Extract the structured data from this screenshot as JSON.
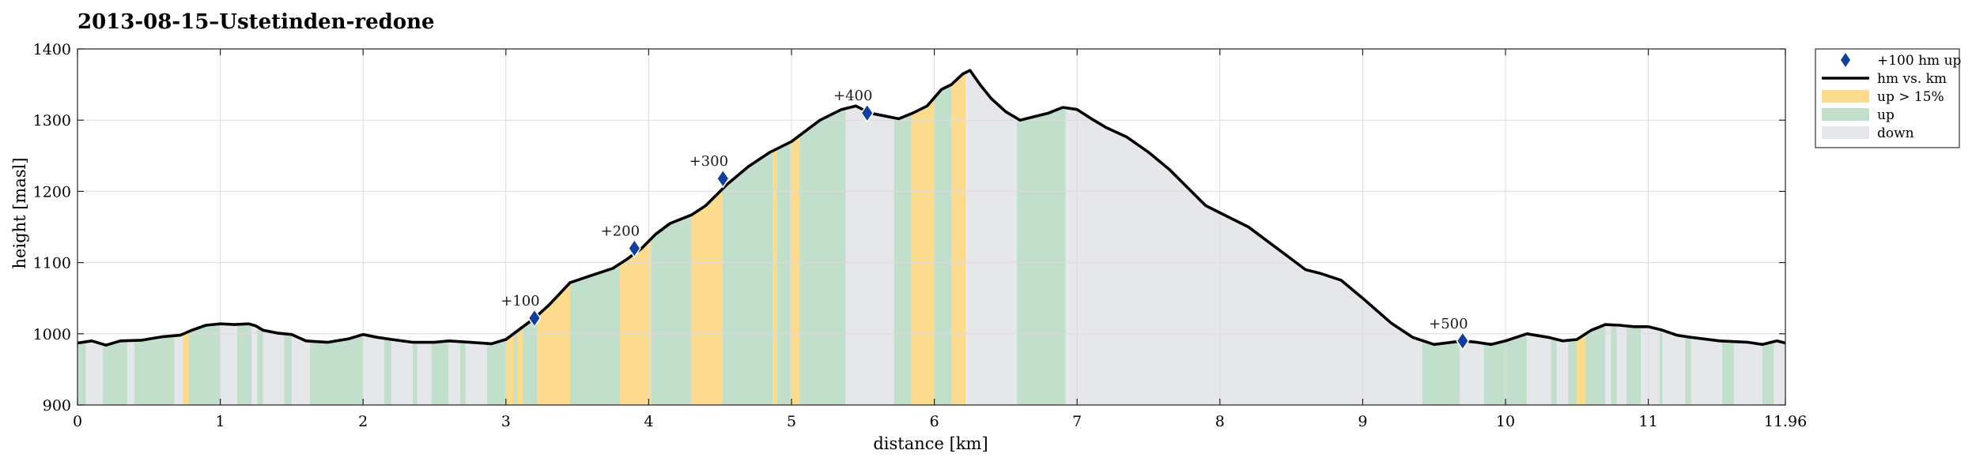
{
  "chart_data": {
    "type": "area",
    "title": "2013-08-15–Ustetinden-redone",
    "xlabel": "distance [km]",
    "ylabel": "height [masl]",
    "xlim": [
      0,
      11.96
    ],
    "ylim": [
      900,
      1400
    ],
    "xticks": [
      0,
      1,
      2,
      3,
      4,
      5,
      6,
      7,
      8,
      9,
      10,
      11,
      11.96
    ],
    "xtick_labels": [
      "0",
      "1",
      "2",
      "3",
      "4",
      "5",
      "6",
      "7",
      "8",
      "9",
      "10",
      "11",
      "11.96"
    ],
    "yticks": [
      900,
      1000,
      1100,
      1200,
      1300,
      1400
    ],
    "ytick_labels": [
      "900",
      "1000",
      "1100",
      "1200",
      "1300",
      "1400"
    ],
    "grid": true,
    "legend_position": "outside-top-right",
    "colors": {
      "line": "#000000",
      "steep": "#fddb8e",
      "up": "#c2dfcc",
      "down": "#e6e7eb",
      "marker": "#123f9a",
      "grid": "#dcdcdc"
    },
    "legend": [
      {
        "key": "marker",
        "label": "+100 hm up"
      },
      {
        "key": "line",
        "label": "hm vs. km"
      },
      {
        "key": "steep",
        "label": "up > 15%"
      },
      {
        "key": "up",
        "label": "up"
      },
      {
        "key": "down",
        "label": "down"
      }
    ],
    "series": [
      {
        "name": "hm vs. km",
        "x": [
          0,
          0.1,
          0.2,
          0.3,
          0.45,
          0.6,
          0.72,
          0.8,
          0.9,
          1.0,
          1.1,
          1.2,
          1.25,
          1.3,
          1.4,
          1.5,
          1.6,
          1.75,
          1.9,
          2.0,
          2.1,
          2.2,
          2.35,
          2.5,
          2.6,
          2.75,
          2.9,
          3.0,
          3.1,
          3.2,
          3.3,
          3.45,
          3.6,
          3.75,
          3.85,
          3.95,
          4.05,
          4.15,
          4.3,
          4.4,
          4.55,
          4.7,
          4.85,
          5.0,
          5.1,
          5.2,
          5.35,
          5.45,
          5.55,
          5.65,
          5.75,
          5.85,
          5.95,
          6.05,
          6.12,
          6.2,
          6.25,
          6.32,
          6.4,
          6.5,
          6.6,
          6.7,
          6.8,
          6.9,
          7.0,
          7.1,
          7.2,
          7.35,
          7.5,
          7.65,
          7.8,
          7.9,
          8.0,
          8.2,
          8.4,
          8.6,
          8.7,
          8.85,
          9.0,
          9.2,
          9.35,
          9.5,
          9.7,
          9.8,
          9.9,
          10.0,
          10.15,
          10.3,
          10.4,
          10.5,
          10.6,
          10.7,
          10.8,
          10.9,
          11.0,
          11.1,
          11.2,
          11.3,
          11.5,
          11.7,
          11.8,
          11.9,
          11.96
        ],
        "y": [
          987,
          990,
          984,
          990,
          991,
          996,
          998,
          1005,
          1012,
          1014,
          1013,
          1014,
          1011,
          1005,
          1001,
          999,
          990,
          988,
          993,
          999,
          995,
          992,
          988,
          988,
          990,
          988,
          986,
          992,
          1007,
          1022,
          1040,
          1072,
          1082,
          1092,
          1105,
          1120,
          1140,
          1155,
          1167,
          1180,
          1210,
          1235,
          1255,
          1270,
          1285,
          1300,
          1315,
          1320,
          1310,
          1306,
          1302,
          1310,
          1320,
          1343,
          1350,
          1365,
          1370,
          1350,
          1330,
          1312,
          1300,
          1305,
          1310,
          1318,
          1315,
          1302,
          1290,
          1276,
          1255,
          1230,
          1200,
          1180,
          1170,
          1150,
          1120,
          1090,
          1085,
          1075,
          1050,
          1015,
          995,
          985,
          990,
          988,
          985,
          990,
          1000,
          995,
          990,
          992,
          1005,
          1013,
          1012,
          1010,
          1010,
          1005,
          998,
          995,
          990,
          988,
          985,
          990,
          987
        ]
      }
    ],
    "markers": [
      {
        "x": 3.2,
        "y": 1022,
        "label": "+100"
      },
      {
        "x": 3.9,
        "y": 1120,
        "label": "+200"
      },
      {
        "x": 4.52,
        "y": 1218,
        "label": "+300"
      },
      {
        "x": 5.53,
        "y": 1310,
        "label": "+400"
      },
      {
        "x": 9.7,
        "y": 990,
        "label": "+500"
      }
    ],
    "bands": [
      {
        "x0": 0.0,
        "x1": 0.06,
        "kind": "up"
      },
      {
        "x0": 0.06,
        "x1": 0.18,
        "kind": "down"
      },
      {
        "x0": 0.18,
        "x1": 0.35,
        "kind": "up"
      },
      {
        "x0": 0.35,
        "x1": 0.4,
        "kind": "down"
      },
      {
        "x0": 0.4,
        "x1": 0.45,
        "kind": "up"
      },
      {
        "x0": 0.45,
        "x1": 0.68,
        "kind": "up"
      },
      {
        "x0": 0.68,
        "x1": 0.74,
        "kind": "down"
      },
      {
        "x0": 0.74,
        "x1": 0.78,
        "kind": "steep"
      },
      {
        "x0": 0.78,
        "x1": 1.0,
        "kind": "up"
      },
      {
        "x0": 1.0,
        "x1": 1.12,
        "kind": "down"
      },
      {
        "x0": 1.12,
        "x1": 1.22,
        "kind": "up"
      },
      {
        "x0": 1.22,
        "x1": 1.26,
        "kind": "down"
      },
      {
        "x0": 1.26,
        "x1": 1.3,
        "kind": "up"
      },
      {
        "x0": 1.3,
        "x1": 1.45,
        "kind": "down"
      },
      {
        "x0": 1.45,
        "x1": 1.5,
        "kind": "up"
      },
      {
        "x0": 1.5,
        "x1": 1.63,
        "kind": "down"
      },
      {
        "x0": 1.63,
        "x1": 2.0,
        "kind": "up"
      },
      {
        "x0": 2.0,
        "x1": 2.15,
        "kind": "down"
      },
      {
        "x0": 2.15,
        "x1": 2.2,
        "kind": "up"
      },
      {
        "x0": 2.2,
        "x1": 2.35,
        "kind": "down"
      },
      {
        "x0": 2.35,
        "x1": 2.38,
        "kind": "up"
      },
      {
        "x0": 2.38,
        "x1": 2.48,
        "kind": "down"
      },
      {
        "x0": 2.48,
        "x1": 2.6,
        "kind": "up"
      },
      {
        "x0": 2.6,
        "x1": 2.68,
        "kind": "down"
      },
      {
        "x0": 2.68,
        "x1": 2.72,
        "kind": "up"
      },
      {
        "x0": 2.72,
        "x1": 2.87,
        "kind": "down"
      },
      {
        "x0": 2.87,
        "x1": 3.0,
        "kind": "up"
      },
      {
        "x0": 3.0,
        "x1": 3.06,
        "kind": "steep"
      },
      {
        "x0": 3.06,
        "x1": 3.08,
        "kind": "up"
      },
      {
        "x0": 3.08,
        "x1": 3.12,
        "kind": "steep"
      },
      {
        "x0": 3.12,
        "x1": 3.22,
        "kind": "up"
      },
      {
        "x0": 3.22,
        "x1": 3.45,
        "kind": "steep"
      },
      {
        "x0": 3.45,
        "x1": 3.8,
        "kind": "up"
      },
      {
        "x0": 3.8,
        "x1": 4.02,
        "kind": "steep"
      },
      {
        "x0": 4.02,
        "x1": 4.3,
        "kind": "up"
      },
      {
        "x0": 4.3,
        "x1": 4.52,
        "kind": "steep"
      },
      {
        "x0": 4.52,
        "x1": 4.87,
        "kind": "up"
      },
      {
        "x0": 4.87,
        "x1": 4.9,
        "kind": "steep"
      },
      {
        "x0": 4.9,
        "x1": 4.99,
        "kind": "up"
      },
      {
        "x0": 4.99,
        "x1": 5.06,
        "kind": "steep"
      },
      {
        "x0": 5.06,
        "x1": 5.38,
        "kind": "up"
      },
      {
        "x0": 5.38,
        "x1": 5.72,
        "kind": "down"
      },
      {
        "x0": 5.72,
        "x1": 5.84,
        "kind": "up"
      },
      {
        "x0": 5.84,
        "x1": 6.0,
        "kind": "steep"
      },
      {
        "x0": 6.0,
        "x1": 6.12,
        "kind": "up"
      },
      {
        "x0": 6.12,
        "x1": 6.22,
        "kind": "steep"
      },
      {
        "x0": 6.22,
        "x1": 6.58,
        "kind": "down"
      },
      {
        "x0": 6.58,
        "x1": 6.92,
        "kind": "up"
      },
      {
        "x0": 6.92,
        "x1": 9.42,
        "kind": "down"
      },
      {
        "x0": 9.42,
        "x1": 9.47,
        "kind": "up"
      },
      {
        "x0": 9.47,
        "x1": 9.68,
        "kind": "up"
      },
      {
        "x0": 9.68,
        "x1": 9.85,
        "kind": "down"
      },
      {
        "x0": 9.85,
        "x1": 10.15,
        "kind": "up"
      },
      {
        "x0": 10.15,
        "x1": 10.32,
        "kind": "down"
      },
      {
        "x0": 10.32,
        "x1": 10.36,
        "kind": "up"
      },
      {
        "x0": 10.36,
        "x1": 10.44,
        "kind": "down"
      },
      {
        "x0": 10.44,
        "x1": 10.5,
        "kind": "up"
      },
      {
        "x0": 10.5,
        "x1": 10.56,
        "kind": "steep"
      },
      {
        "x0": 10.56,
        "x1": 10.7,
        "kind": "up"
      },
      {
        "x0": 10.7,
        "x1": 10.74,
        "kind": "down"
      },
      {
        "x0": 10.74,
        "x1": 10.78,
        "kind": "up"
      },
      {
        "x0": 10.78,
        "x1": 10.85,
        "kind": "down"
      },
      {
        "x0": 10.85,
        "x1": 10.95,
        "kind": "up"
      },
      {
        "x0": 10.95,
        "x1": 11.08,
        "kind": "down"
      },
      {
        "x0": 11.08,
        "x1": 11.1,
        "kind": "up"
      },
      {
        "x0": 11.1,
        "x1": 11.26,
        "kind": "down"
      },
      {
        "x0": 11.26,
        "x1": 11.3,
        "kind": "up"
      },
      {
        "x0": 11.3,
        "x1": 11.52,
        "kind": "down"
      },
      {
        "x0": 11.52,
        "x1": 11.6,
        "kind": "up"
      },
      {
        "x0": 11.6,
        "x1": 11.8,
        "kind": "down"
      },
      {
        "x0": 11.8,
        "x1": 11.88,
        "kind": "up"
      },
      {
        "x0": 11.88,
        "x1": 11.96,
        "kind": "down"
      }
    ]
  }
}
